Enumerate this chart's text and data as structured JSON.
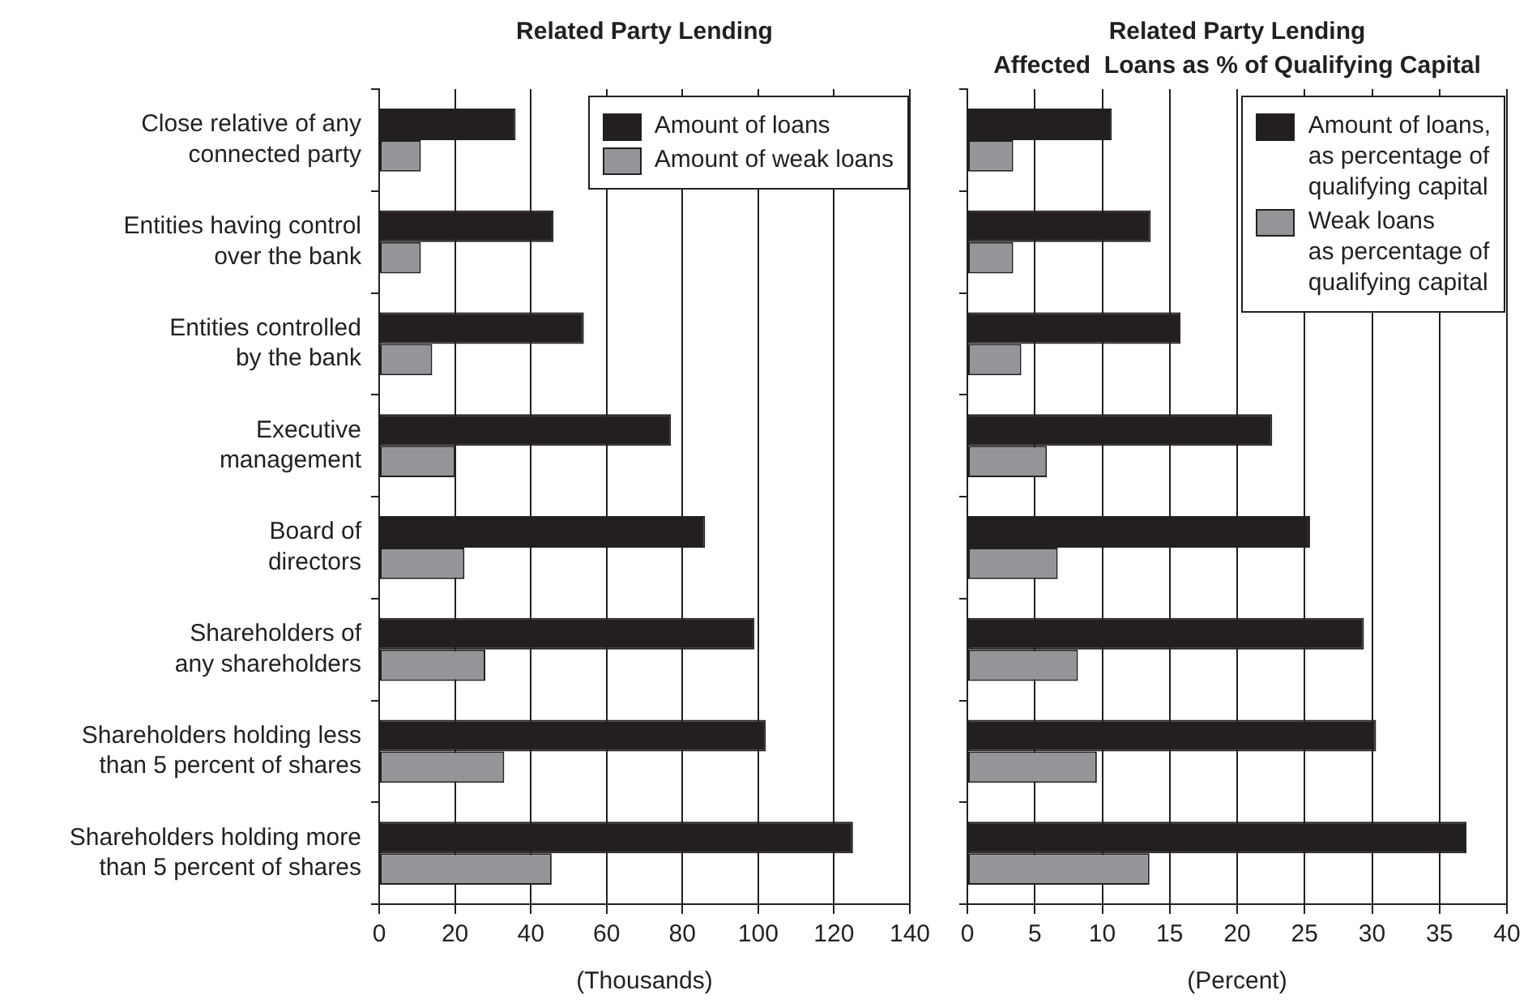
{
  "chart_data": [
    {
      "type": "bar",
      "orientation": "horizontal",
      "title": "Related Party Lending",
      "xlabel": "(Thousands)",
      "categories": [
        "Close relative of any\nconnected party",
        "Entities having control\nover the bank",
        "Entities controlled\nby the bank",
        "Executive\nmanagement",
        "Board of\ndirectors",
        "Shareholders of\nany shareholders",
        "Shareholders holding less\nthan 5 percent of shares",
        "Shareholders holding more\nthan 5 percent of shares"
      ],
      "series": [
        {
          "name": "Amount of loans",
          "color": "#231f20",
          "values": [
            36,
            46,
            54,
            77,
            86,
            99,
            102,
            125
          ]
        },
        {
          "name": "Amount of weak loans",
          "color": "#939598",
          "values": [
            11,
            11,
            14,
            20,
            22.5,
            28,
            33,
            45.5
          ]
        }
      ],
      "xlim": [
        0,
        140
      ],
      "xticks": [
        0,
        20,
        40,
        60,
        80,
        100,
        120,
        140
      ],
      "grid": "x",
      "legend": "top right"
    },
    {
      "type": "bar",
      "orientation": "horizontal",
      "title": "Related Party Lending",
      "subtitle": "Affected  Loans as % of Qualifying Capital",
      "xlabel": "(Percent)",
      "categories": [
        null,
        null,
        null,
        null,
        null,
        null,
        null,
        null
      ],
      "series": [
        {
          "name": "Amount of loans,\nas percentage of\nqualifying capital",
          "color": "#231f20",
          "values": [
            10.7,
            13.6,
            15.8,
            22.6,
            25.4,
            29.4,
            30.3,
            37
          ]
        },
        {
          "name": "Weak loans\nas percentage of\nqualifying capital",
          "color": "#939598",
          "values": [
            3.4,
            3.4,
            4,
            5.9,
            6.7,
            8.2,
            9.6,
            13.5
          ]
        }
      ],
      "xlim": [
        0,
        40
      ],
      "xticks": [
        0,
        5,
        10,
        15,
        20,
        25,
        30,
        35,
        40
      ],
      "grid": "x",
      "legend": "top right",
      "tick_labels": "x"
    }
  ]
}
